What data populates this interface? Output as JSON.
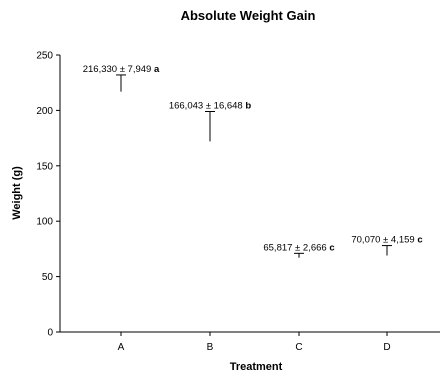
{
  "chart_data": {
    "type": "scatter",
    "title": "Absolute Weight Gain",
    "xlabel": "Treatment",
    "ylabel": "Weight (g)",
    "categories": [
      "A",
      "B",
      "C",
      "D"
    ],
    "values": [
      216.33,
      166.043,
      65.817,
      70.07
    ],
    "errors": [
      7.949,
      16.648,
      2.666,
      4.159
    ],
    "error_bar_top": [
      232,
      199,
      71,
      78
    ],
    "error_bar_bottom": [
      217,
      172,
      67,
      69
    ],
    "labels": [
      {
        "text": "216,330 ± 7,949",
        "letter": "a"
      },
      {
        "text": "166,043 ± 16,648",
        "letter": "b"
      },
      {
        "text": "65,817 ± 2,666",
        "letter": "c"
      },
      {
        "text": "70,070 ± 4,159",
        "letter": "c"
      }
    ],
    "ylim": [
      0,
      250
    ],
    "yticks": [
      "0",
      "50",
      "100",
      "150",
      "200",
      "250"
    ],
    "grid": false,
    "legend": "none"
  }
}
